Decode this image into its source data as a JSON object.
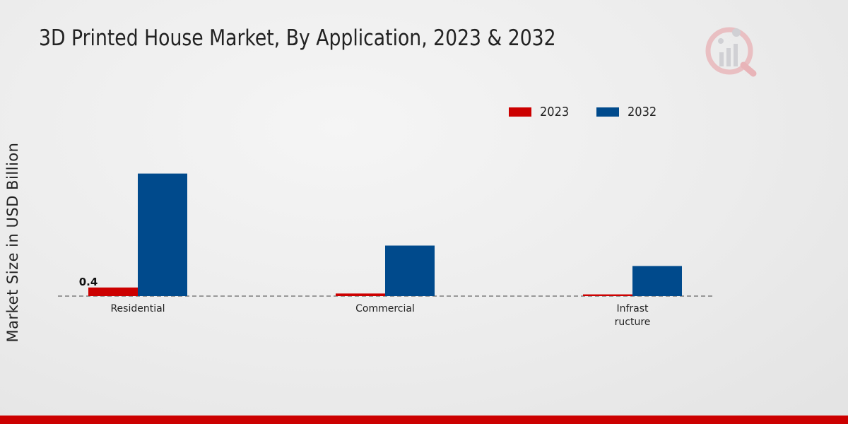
{
  "colors": {
    "series_2023": "#cc0000",
    "series_2032": "#004a8c",
    "footer": "#cc0000"
  },
  "logo": {
    "icon": "mrfr-logo-icon"
  },
  "chart_data": {
    "type": "bar",
    "title": "3D Printed House Market, By Application, 2023 & 2032",
    "xlabel": "",
    "ylabel": "Market Size in USD Billion",
    "categories": [
      "Residential",
      "Commercial",
      "Infrast\nructure"
    ],
    "series": [
      {
        "name": "2023",
        "values": [
          0.4,
          0.12,
          0.08
        ]
      },
      {
        "name": "2032",
        "values": [
          5.7,
          2.35,
          1.4
        ]
      }
    ],
    "data_labels": [
      {
        "series": "2023",
        "category": "Residential",
        "text": "0.4"
      }
    ],
    "ylim": [
      0,
      9.5
    ],
    "grid": false,
    "legend_position": "top-right"
  }
}
